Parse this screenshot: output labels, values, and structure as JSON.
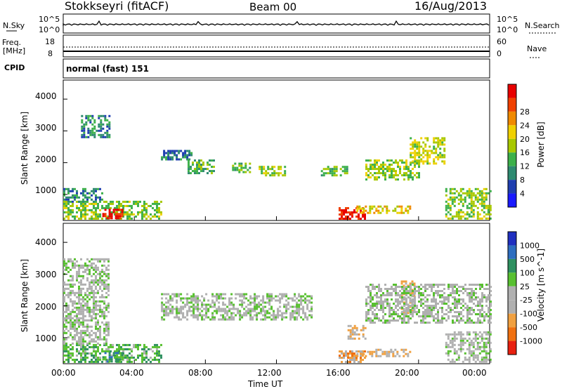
{
  "header": {
    "station": "Stokkseyri (fitACF)",
    "beam": "Beam 00",
    "date": "16/Aug/2013"
  },
  "noise_panel": {
    "left_label": "N.Sky",
    "right_label": "N.Search",
    "left_ticks": [
      "10^5",
      "10^0"
    ],
    "right_ticks": [
      "10^5",
      "10^0"
    ]
  },
  "freq_panel": {
    "left_label_line1": "Freq.",
    "left_label_line2": "[MHz]",
    "left_ticks": [
      "18",
      "8"
    ],
    "right_label": "Nave",
    "right_ticks": [
      "60",
      "0"
    ]
  },
  "cpid_panel": {
    "label": "CPID",
    "value": "normal (fast) 151"
  },
  "power_panel": {
    "ylabel": "Slant Range [km]",
    "yticks": [
      "1000",
      "2000",
      "3000",
      "4000"
    ],
    "colorbar_label": "Power [dB]",
    "colorbar_ticks": [
      "4",
      "8",
      "12",
      "16",
      "20",
      "24",
      "28"
    ],
    "colors": [
      "#1a1aff",
      "#1f3fb0",
      "#2e8a70",
      "#3cb04a",
      "#a8c800",
      "#f0d000",
      "#f08a00",
      "#f04000",
      "#e80000"
    ]
  },
  "velocity_panel": {
    "ylabel": "Slant Range [km]",
    "yticks": [
      "1000",
      "2000",
      "3000",
      "4000"
    ],
    "colorbar_label": "Velocity [m s^-1]",
    "colorbar_ticks": [
      "1000",
      "500",
      "100",
      "25",
      "-25",
      "-100",
      "-500",
      "-1000"
    ],
    "colors": [
      "#2030c0",
      "#2e6ec0",
      "#2e9060",
      "#58c030",
      "#b0b0b0",
      "#b0b0b0",
      "#f0a040",
      "#f07010",
      "#e82010"
    ]
  },
  "x_axis": {
    "ticks": [
      "00:00",
      "04:00",
      "08:00",
      "12:00",
      "16:00",
      "20:00",
      "00:00"
    ],
    "label": "Time UT"
  },
  "chart_data": [
    {
      "type": "heatmap",
      "title": "Power",
      "xlabel": "Time UT",
      "ylabel": "Slant Range [km]",
      "xlim": [
        0,
        24
      ],
      "ylim": [
        180,
        4600
      ],
      "colorbar": "Power [dB]",
      "clim": [
        0,
        30
      ],
      "regions": [
        {
          "t0": 0.0,
          "t1": 5.5,
          "r0": 250,
          "r1": 800,
          "value": 14
        },
        {
          "t0": 2.2,
          "t1": 3.3,
          "r0": 250,
          "r1": 550,
          "value": 28
        },
        {
          "t0": 0.0,
          "t1": 2.2,
          "r0": 800,
          "r1": 1200,
          "value": 8
        },
        {
          "t0": 1.0,
          "t1": 2.6,
          "r0": 2800,
          "r1": 3500,
          "value": 9
        },
        {
          "t0": 5.5,
          "t1": 7.2,
          "r0": 2100,
          "r1": 2400,
          "value": 7
        },
        {
          "t0": 7.0,
          "t1": 8.5,
          "r0": 1700,
          "r1": 2100,
          "value": 12
        },
        {
          "t0": 9.5,
          "t1": 10.5,
          "r0": 1700,
          "r1": 2000,
          "value": 12
        },
        {
          "t0": 11.0,
          "t1": 12.5,
          "r0": 1600,
          "r1": 1900,
          "value": 14
        },
        {
          "t0": 14.5,
          "t1": 16.0,
          "r0": 1600,
          "r1": 1900,
          "value": 13
        },
        {
          "t0": 15.5,
          "t1": 17.0,
          "r0": 250,
          "r1": 600,
          "value": 28
        },
        {
          "t0": 16.5,
          "t1": 19.5,
          "r0": 450,
          "r1": 650,
          "value": 18
        },
        {
          "t0": 17.0,
          "t1": 20.0,
          "r0": 1500,
          "r1": 2100,
          "value": 14
        },
        {
          "t0": 19.5,
          "t1": 21.5,
          "r0": 2000,
          "r1": 2800,
          "value": 16
        },
        {
          "t0": 21.5,
          "t1": 24.0,
          "r0": 250,
          "r1": 1200,
          "value": 14
        }
      ]
    },
    {
      "type": "heatmap",
      "title": "Velocity",
      "xlabel": "Time UT",
      "ylabel": "Slant Range [km]",
      "xlim": [
        0,
        24
      ],
      "ylim": [
        180,
        4600
      ],
      "colorbar": "Velocity [m s^-1]",
      "clim": [
        -1000,
        1000
      ],
      "regions": [
        {
          "t0": 0.0,
          "t1": 5.5,
          "r0": 250,
          "r1": 800,
          "value": 300
        },
        {
          "t0": 2.2,
          "t1": 3.3,
          "r0": 250,
          "r1": 550,
          "value": 400
        },
        {
          "t0": 0.0,
          "t1": 2.6,
          "r0": 800,
          "r1": 3500,
          "value": 0
        },
        {
          "t0": 5.5,
          "t1": 14.0,
          "r0": 1600,
          "r1": 2400,
          "value": 0
        },
        {
          "t0": 15.5,
          "t1": 17.0,
          "r0": 250,
          "r1": 600,
          "value": -400
        },
        {
          "t0": 16.5,
          "t1": 19.5,
          "r0": 450,
          "r1": 650,
          "value": -300
        },
        {
          "t0": 16.0,
          "t1": 17.0,
          "r0": 1000,
          "r1": 1400,
          "value": -300
        },
        {
          "t0": 19.0,
          "t1": 19.8,
          "r0": 1800,
          "r1": 2800,
          "value": -300
        },
        {
          "t0": 17.0,
          "t1": 24.0,
          "r0": 1500,
          "r1": 2700,
          "value": 0
        },
        {
          "t0": 21.5,
          "t1": 24.0,
          "r0": 250,
          "r1": 1200,
          "value": 0
        }
      ]
    }
  ]
}
